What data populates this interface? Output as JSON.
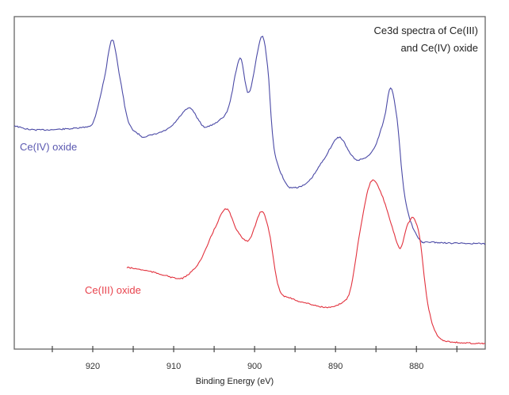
{
  "chart_data": {
    "type": "line",
    "title": [
      "Ce3d spectra of Ce(III)",
      "and Ce(IV) oxide"
    ],
    "xlabel": "Binding Energy (eV)",
    "ylabel": "",
    "xlim": [
      929.7,
      871.5
    ],
    "x_reversed": true,
    "ylim": [
      0,
      100
    ],
    "y_ticks_shown": false,
    "x_ticks": [
      920,
      910,
      900,
      890,
      880
    ],
    "x_minor_ticks": [
      925,
      915,
      905,
      895,
      885,
      875
    ],
    "grid": false,
    "series": [
      {
        "name": "Ce(IV) oxide",
        "color": "#4b4aa6",
        "x": [
          929.7,
          927.5,
          923.4,
          920.6,
          919.8,
          918.6,
          917.6,
          916.6,
          915.6,
          914.2,
          913.4,
          910.6,
          908.2,
          907.0,
          906.0,
          903.8,
          903.0,
          901.8,
          900.7,
          899.2,
          898.4,
          897.6,
          896.2,
          895.2,
          893.4,
          891.4,
          889.6,
          888.2,
          887.2,
          885.4,
          884.0,
          883.2,
          882.4,
          881.4,
          879.8,
          877.8,
          871.5
        ],
        "y": [
          67.2,
          66.0,
          66.2,
          67.0,
          69.2,
          81.1,
          93.0,
          81.1,
          68.4,
          64.4,
          64.0,
          66.4,
          72.4,
          69.2,
          66.8,
          70.0,
          74.8,
          87.5,
          77.1,
          93.8,
          85.1,
          60.5,
          50.2,
          48.6,
          50.2,
          57.3,
          63.7,
          58.9,
          56.9,
          59.7,
          69.2,
          78.7,
          69.2,
          45.4,
          33.5,
          32.1,
          31.7
        ]
      },
      {
        "name": "Ce(III) oxide",
        "color": "#e2323e",
        "x": [
          915.8,
          913.4,
          911.4,
          909.4,
          908.2,
          906.6,
          905.0,
          903.5,
          902.2,
          900.7,
          899.2,
          898.2,
          897.0,
          895.4,
          893.4,
          891.0,
          889.4,
          888.2,
          887.0,
          886.0,
          885.2,
          884.0,
          883.0,
          882.0,
          881.2,
          880.4,
          879.6,
          878.6,
          877.4,
          875.4,
          871.5
        ],
        "y": [
          24.6,
          23.6,
          22.4,
          21.2,
          22.4,
          27.1,
          35.9,
          42.2,
          35.9,
          32.7,
          41.4,
          35.1,
          18.4,
          15.2,
          13.7,
          12.5,
          13.7,
          17.6,
          35.1,
          47.8,
          50.6,
          44.6,
          36.7,
          30.3,
          36.7,
          39.4,
          33.5,
          13.7,
          4.1,
          2.1,
          1.7
        ]
      }
    ]
  }
}
